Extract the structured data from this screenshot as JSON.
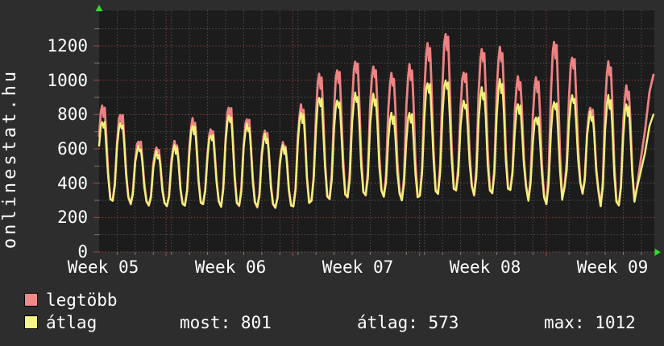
{
  "site": "onlinestat.hu",
  "palette": {
    "background": "#2d2d2d",
    "plot_background": "#1c1c1c",
    "grid_minor": "#585858",
    "grid_major": "#a84848",
    "tick_minor": "#7a7a7a",
    "tick_major": "#a84848",
    "text": "#ffffff",
    "axis_arrow": "#2ce02c",
    "series_legtobb": "#ee8383",
    "series_atlag": "#f1f17a"
  },
  "legend": [
    {
      "label": "legtöbb",
      "color": "#f08a8a"
    },
    {
      "label": "átlag",
      "color": "#f5f58a"
    }
  ],
  "stats": [
    {
      "label": "most:",
      "value": "801"
    },
    {
      "label": "átlag:",
      "value": "573"
    },
    {
      "label": "max:",
      "value": "1012"
    }
  ],
  "chart_data": {
    "type": "line",
    "title": "",
    "xlabel": "",
    "ylabel": "",
    "x_tick_labels": [
      "Week 05",
      "Week 06",
      "Week 07",
      "Week 08",
      "Week 09"
    ],
    "y_tick_labels": [
      0,
      200,
      400,
      600,
      800,
      1000,
      1200
    ],
    "y_minor_gridlines": [
      100,
      300,
      500,
      700,
      900,
      1100,
      1300
    ],
    "ylim": [
      0,
      1406
    ],
    "x_span_days": 31,
    "grid": true,
    "legend_position": "bottom-left",
    "daily_mins": [
      290,
      300,
      280,
      270,
      265,
      270,
      280,
      265,
      270,
      260,
      255,
      265,
      300,
      310,
      320,
      330,
      320,
      300,
      330,
      340,
      360,
      330,
      340,
      360,
      300,
      280,
      380,
      340,
      265,
      270,
      370
    ],
    "series": [
      {
        "name": "legtöbb",
        "color": "#ee8383",
        "daily_peaks": [
          850,
          803,
          650,
          610,
          640,
          770,
          710,
          845,
          780,
          710,
          635,
          850,
          1033,
          1061,
          1116,
          1084,
          1038,
          1085,
          1210,
          1272,
          1053,
          1186,
          1192,
          1014,
          1010,
          1225,
          1139,
          845,
          1108,
          961,
          1040
        ]
      },
      {
        "name": "átlag",
        "color": "#f1f17a",
        "daily_peaks": [
          765,
          755,
          615,
          580,
          615,
          735,
          685,
          800,
          745,
          680,
          615,
          810,
          905,
          889,
          928,
          913,
          803,
          810,
          990,
          1007,
          881,
          952,
          999,
          860,
          790,
          881,
          914,
          811,
          905,
          858,
          800
        ]
      }
    ]
  }
}
